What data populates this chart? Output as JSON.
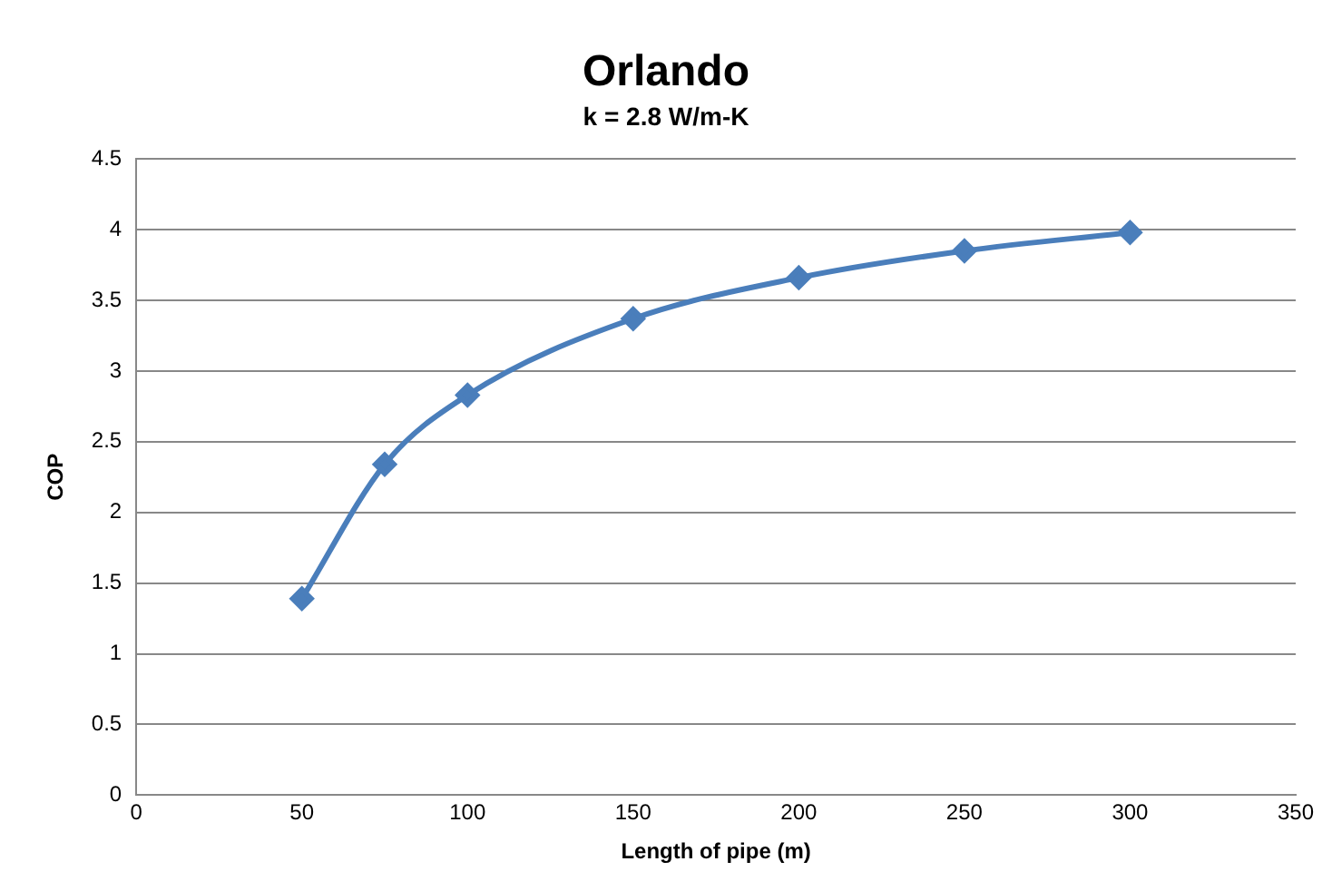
{
  "chart_data": {
    "type": "line",
    "title": "Orlando",
    "subtitle": "k = 2.8 W/m-K",
    "xlabel": "Length of pipe (m)",
    "ylabel": "COP",
    "x": [
      50,
      75,
      100,
      150,
      200,
      250,
      300
    ],
    "series": [
      {
        "color": "#4a7ebb",
        "values": [
          1.39,
          2.34,
          2.83,
          3.37,
          3.66,
          3.85,
          3.98
        ]
      }
    ],
    "xlim": [
      0,
      350
    ],
    "xticks": [
      0,
      50,
      100,
      150,
      200,
      250,
      300,
      350
    ],
    "ylim": [
      0,
      4.5
    ],
    "yticks": [
      0,
      0.5,
      1,
      1.5,
      2,
      2.5,
      3,
      3.5,
      4,
      4.5
    ],
    "grid": "y",
    "legend": false,
    "marker": "diamond",
    "line_style": "solid"
  }
}
